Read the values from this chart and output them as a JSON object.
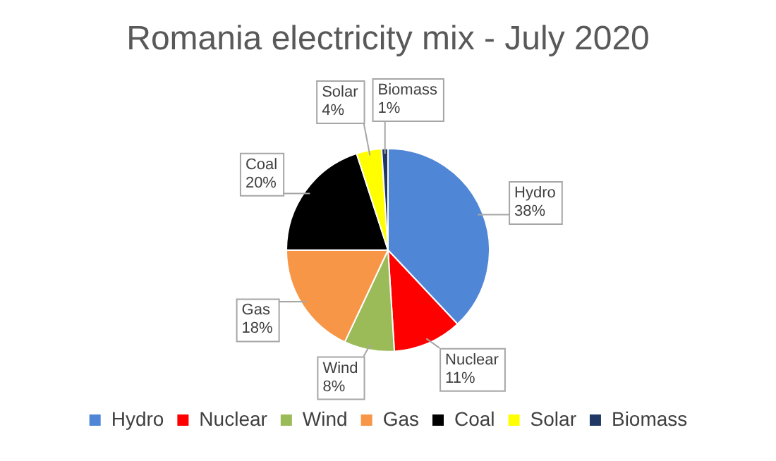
{
  "chart_data": {
    "type": "pie",
    "title": "Romania electricity mix - July 2020",
    "categories": [
      "Hydro",
      "Nuclear",
      "Wind",
      "Gas",
      "Coal",
      "Solar",
      "Biomass"
    ],
    "values": [
      38,
      11,
      8,
      18,
      20,
      4,
      1
    ],
    "value_labels": [
      "38%",
      "11%",
      "8%",
      "18%",
      "20%",
      "4%",
      "1%"
    ],
    "colors": [
      "#4f86d6",
      "#ff0000",
      "#9bbb59",
      "#f79646",
      "#000000",
      "#ffff00",
      "#1f3864"
    ],
    "legend": "bottom"
  }
}
